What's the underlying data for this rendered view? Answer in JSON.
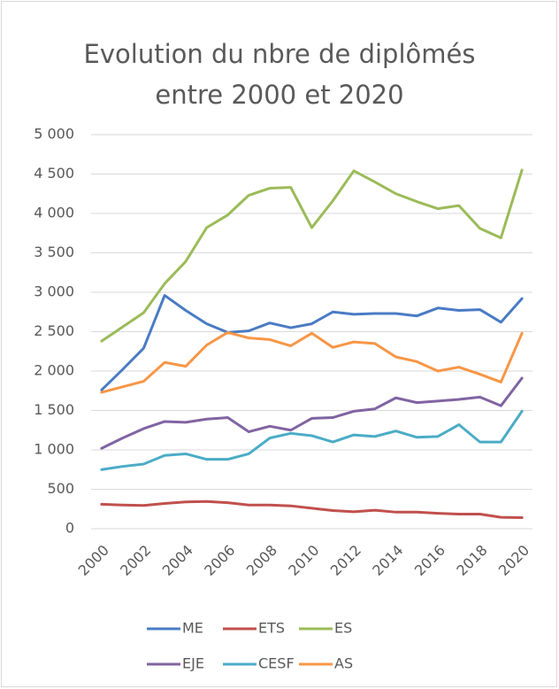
{
  "chart_data": {
    "type": "line",
    "title": "Evolution du nbre de diplômés entre 2000 et 2020",
    "categories": [
      "2000",
      null,
      "2002",
      null,
      "2004",
      null,
      "2006",
      null,
      "2008",
      null,
      "2010",
      null,
      "2012",
      null,
      "2014",
      null,
      "2016",
      null,
      "2018",
      null,
      "2020"
    ],
    "series": [
      {
        "name": "ME",
        "color": "#4a7bc4",
        "values": [
          1760,
          2020,
          2290,
          2960,
          2770,
          2600,
          2490,
          2510,
          2610,
          2550,
          2600,
          2750,
          2720,
          2730,
          2730,
          2700,
          2800,
          2770,
          2780,
          2620,
          2920
        ]
      },
      {
        "name": "ETS",
        "color": "#c0504d",
        "values": [
          310,
          300,
          295,
          320,
          340,
          345,
          330,
          300,
          300,
          290,
          260,
          230,
          215,
          235,
          210,
          210,
          195,
          185,
          185,
          145,
          140
        ]
      },
      {
        "name": "ES",
        "color": "#9bbb59",
        "values": [
          2380,
          2560,
          2740,
          3110,
          3390,
          3820,
          3980,
          4230,
          4320,
          4330,
          3820,
          4160,
          4540,
          4400,
          4250,
          4150,
          4060,
          4100,
          3810,
          3690,
          4550
        ]
      },
      {
        "name": "EJE",
        "color": "#8064a2",
        "values": [
          1020,
          1150,
          1270,
          1360,
          1350,
          1390,
          1410,
          1230,
          1300,
          1250,
          1400,
          1410,
          1490,
          1520,
          1660,
          1600,
          1620,
          1640,
          1670,
          1560,
          1910
        ]
      },
      {
        "name": "CESF",
        "color": "#4bacc6",
        "values": [
          750,
          790,
          820,
          930,
          950,
          880,
          880,
          950,
          1150,
          1210,
          1180,
          1100,
          1190,
          1170,
          1240,
          1160,
          1170,
          1320,
          1100,
          1100,
          1490
        ]
      },
      {
        "name": "AS",
        "color": "#f79646",
        "values": [
          1730,
          1800,
          1870,
          2110,
          2060,
          2330,
          2490,
          2420,
          2400,
          2320,
          2480,
          2300,
          2370,
          2350,
          2180,
          2120,
          2000,
          2050,
          1960,
          1860,
          2480
        ]
      }
    ],
    "ylim": [
      0,
      5000
    ],
    "yticks": [
      0,
      500,
      {
        "value": 1000,
        "label": "1 000"
      },
      {
        "value": 1500,
        "label": "1 500"
      },
      {
        "value": 2000,
        "label": "2 000"
      },
      {
        "value": 2500,
        "label": "2 500"
      },
      {
        "value": 3000,
        "label": "3 000"
      },
      {
        "value": 3500,
        "label": "3 500"
      },
      {
        "value": 4000,
        "label": "4 000"
      },
      {
        "value": 4500,
        "label": "4 500"
      },
      {
        "value": 5000,
        "label": "5 000"
      }
    ],
    "grid": true,
    "legend": "bottom"
  }
}
